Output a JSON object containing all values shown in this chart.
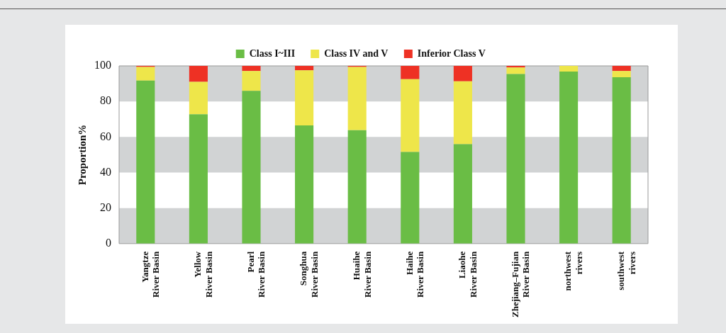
{
  "chart_data": {
    "type": "bar",
    "stacked": true,
    "ylabel": "Proportion%",
    "categories": [
      "Yangtze River Basin",
      "Yellow River Basin",
      "Pearl River Basin",
      "Songhua River Basin",
      "Huaihe River Basin",
      "Haihe River Basin",
      "Liaohe River Basin",
      "Zhejiang–Fujian River Basin",
      "northwest rivers",
      "southwest rivers"
    ],
    "series": [
      {
        "name": "Class I~III",
        "color": "#6abd45",
        "values": [
          91.7,
          72.8,
          85.9,
          66.5,
          63.8,
          51.6,
          55.9,
          95.4,
          96.8,
          93.6
        ]
      },
      {
        "name": "Class IV and V",
        "color": "#eee64a",
        "values": [
          7.7,
          18.2,
          11.2,
          31.0,
          35.6,
          40.9,
          35.4,
          3.7,
          3.2,
          3.5
        ]
      },
      {
        "name": "Inferior Class V",
        "color": "#ee3124",
        "values": [
          0.6,
          9.0,
          2.9,
          2.5,
          0.6,
          7.5,
          8.7,
          0.9,
          0,
          2.9
        ]
      }
    ],
    "ylim": [
      0,
      100
    ],
    "yticks": [
      0,
      20,
      40,
      60,
      80,
      100
    ],
    "legend": "top",
    "bands": [
      {
        "axis": "y",
        "from": 80,
        "to": 100,
        "color": "#d1d3d4"
      },
      {
        "axis": "y",
        "from": 40,
        "to": 60,
        "color": "#d1d3d4"
      },
      {
        "axis": "y",
        "from": 0,
        "to": 20,
        "color": "#d1d3d4"
      }
    ]
  }
}
